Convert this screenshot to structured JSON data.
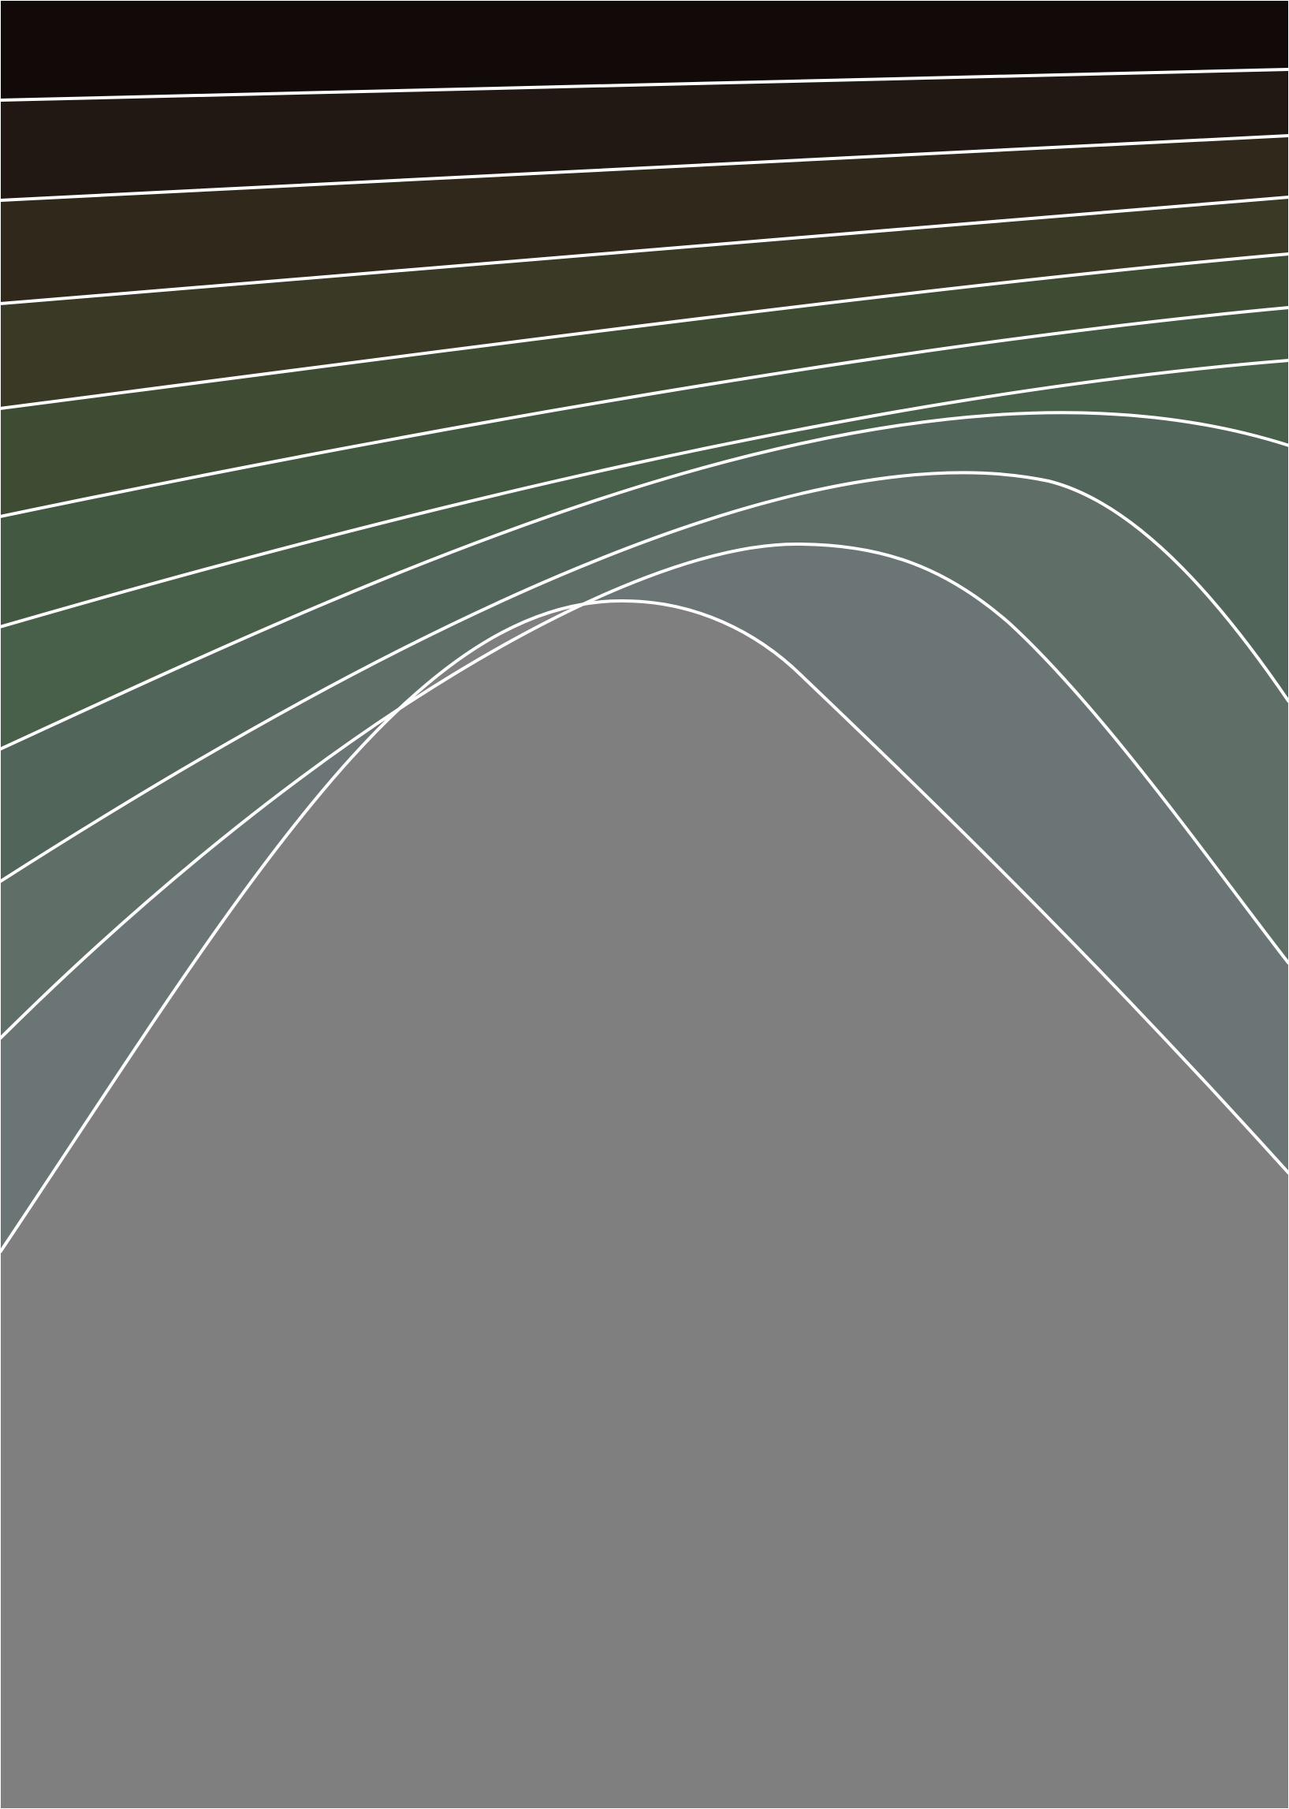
{
  "artwork": {
    "description_colors": {
      "background_top": "#120a09",
      "stroke": "#ffffff",
      "base": "#7f7f7f"
    },
    "layers": [
      {
        "name": "layer-1",
        "fill": "#120a09"
      },
      {
        "name": "layer-2",
        "fill": "#211813"
      },
      {
        "name": "layer-3",
        "fill": "#31281c"
      },
      {
        "name": "layer-4",
        "fill": "#393926"
      },
      {
        "name": "layer-5",
        "fill": "#3f4c34"
      },
      {
        "name": "layer-6",
        "fill": "#425840"
      },
      {
        "name": "layer-7",
        "fill": "#48604a"
      },
      {
        "name": "layer-8",
        "fill": "#51655b"
      },
      {
        "name": "layer-9",
        "fill": "#5f6f68"
      },
      {
        "name": "layer-10",
        "fill": "#6b7576"
      },
      {
        "name": "layer-11",
        "fill": "#7f7f7f"
      }
    ]
  }
}
